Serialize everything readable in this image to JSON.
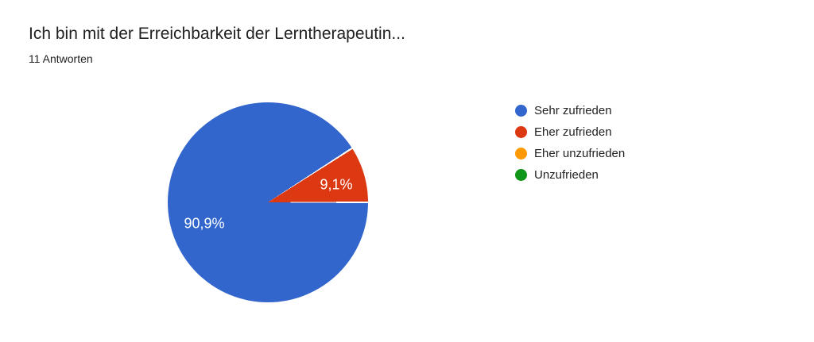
{
  "header": {
    "title": "Ich bin mit der Erreichbarkeit der Lerntherapeutin...",
    "responses_count": "11 Antworten"
  },
  "chart_data": {
    "type": "pie",
    "title": "Ich bin mit der Erreichbarkeit der Lerntherapeutin...",
    "responses_label": "11 Antworten",
    "total_responses": 11,
    "categories": [
      "Sehr zufrieden",
      "Eher zufrieden",
      "Eher unzufrieden",
      "Unzufrieden"
    ],
    "values": [
      10,
      1,
      0,
      0
    ],
    "percentages": [
      90.9,
      9.1,
      0,
      0
    ],
    "slice_labels": [
      "90,9%",
      "9,1%",
      "",
      ""
    ],
    "colors": [
      "#3366cc",
      "#dc3912",
      "#ff9900",
      "#109618"
    ],
    "slice_border_color": "#ffffff",
    "legend_position": "right",
    "start_angle": "3-oclock",
    "direction": "clockwise"
  },
  "legend": {
    "items": [
      {
        "label": "Sehr zufrieden",
        "color": "#3366cc"
      },
      {
        "label": "Eher zufrieden",
        "color": "#dc3912"
      },
      {
        "label": "Eher unzufrieden",
        "color": "#ff9900"
      },
      {
        "label": "Unzufrieden",
        "color": "#109618"
      }
    ]
  }
}
